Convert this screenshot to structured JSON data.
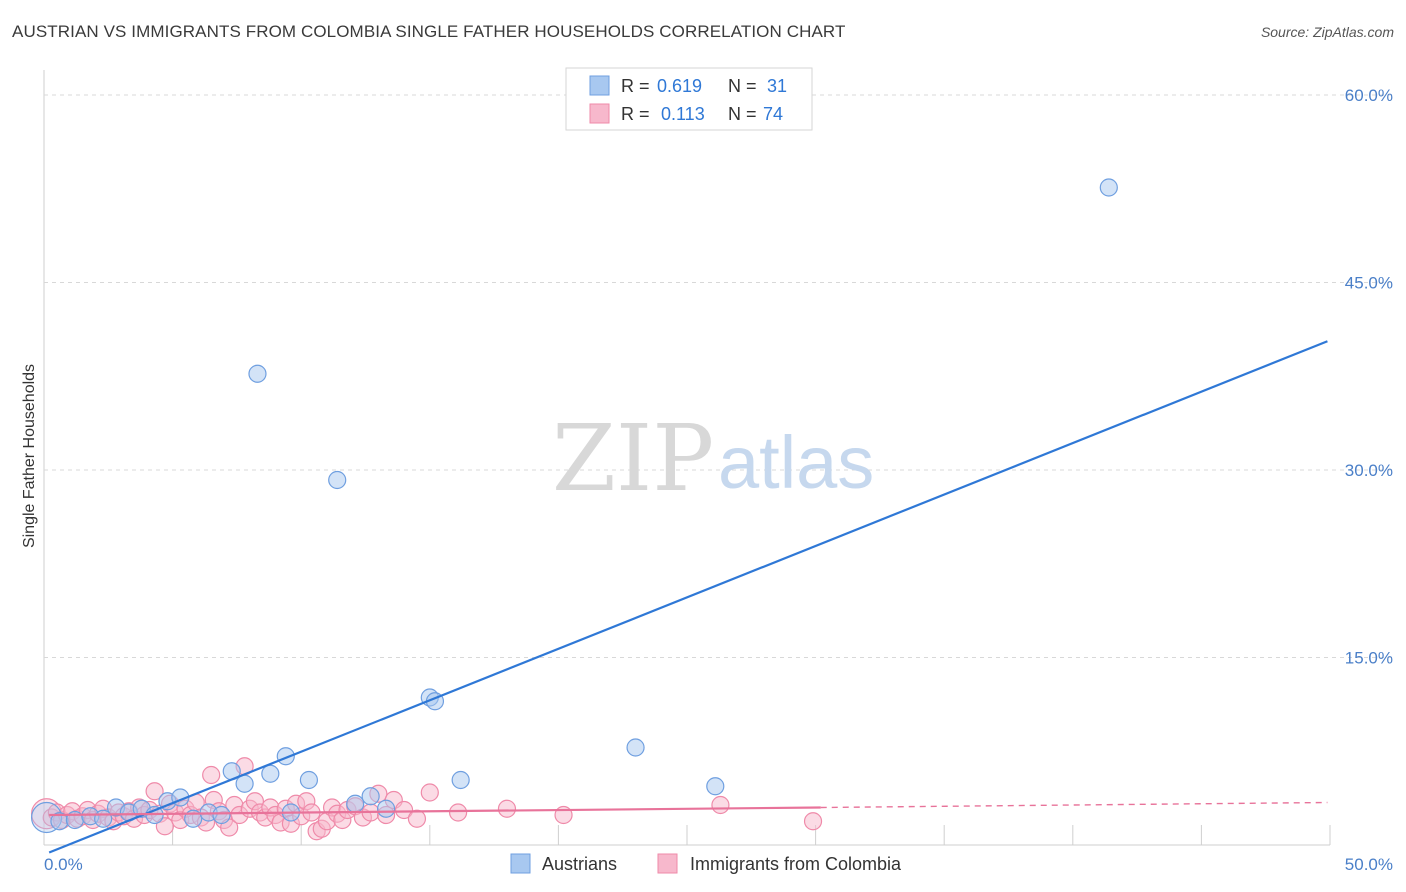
{
  "header": {
    "title": "AUSTRIAN VS IMMIGRANTS FROM COLOMBIA SINGLE FATHER HOUSEHOLDS CORRELATION CHART",
    "source": "Source: ZipAtlas.com"
  },
  "watermark": {
    "zip": "ZIP",
    "atlas": "atlas"
  },
  "colors": {
    "blue_fill": "#a8c8f0",
    "blue_stroke": "#6f9fe0",
    "blue_line": "#2f78d6",
    "pink_fill": "#f7b8cc",
    "pink_stroke": "#ef8aa9",
    "pink_line": "#e8739a",
    "tick_text": "#4a7fc8",
    "grid": "#d8d8d8"
  },
  "legend": {
    "rows": [
      {
        "r_label": "R =",
        "r_value": "0.619",
        "n_label": "N =",
        "n_value": "31"
      },
      {
        "r_label": "R =",
        "r_value": "0.113",
        "n_label": "N =",
        "n_value": "74"
      }
    ]
  },
  "bottom_legend": [
    "Austrians",
    "Immigrants from Colombia"
  ],
  "chart_data": {
    "type": "scatter",
    "title": "AUSTRIAN VS IMMIGRANTS FROM COLOMBIA SINGLE FATHER HOUSEHOLDS CORRELATION CHART",
    "xlabel": "",
    "ylabel": "Single Father Households",
    "xlim": [
      0,
      50
    ],
    "ylim": [
      0,
      62
    ],
    "x_tick_labels": [
      "0.0%",
      "50.0%"
    ],
    "y_ticks": [
      15,
      30,
      45,
      60
    ],
    "y_tick_labels": [
      "15.0%",
      "30.0%",
      "45.0%",
      "60.0%"
    ],
    "series": [
      {
        "name": "Austrians",
        "color": "#a8c8f0",
        "R": 0.619,
        "N": 31,
        "trend": {
          "x": [
            0.2,
            49.9
          ],
          "y": [
            -0.6,
            40.3
          ]
        },
        "points": [
          [
            0.1,
            2.2,
            "big"
          ],
          [
            0.6,
            1.9
          ],
          [
            1.2,
            2.0
          ],
          [
            1.8,
            2.3
          ],
          [
            2.3,
            2.1
          ],
          [
            2.8,
            3.0
          ],
          [
            3.3,
            2.6
          ],
          [
            3.8,
            2.9
          ],
          [
            4.3,
            2.4
          ],
          [
            4.8,
            3.5
          ],
          [
            5.3,
            3.8
          ],
          [
            5.8,
            2.1
          ],
          [
            6.4,
            2.6
          ],
          [
            6.9,
            2.4
          ],
          [
            7.3,
            5.9
          ],
          [
            7.8,
            4.9
          ],
          [
            8.3,
            37.7
          ],
          [
            8.8,
            5.7
          ],
          [
            9.4,
            7.1
          ],
          [
            9.6,
            2.6
          ],
          [
            10.3,
            5.2
          ],
          [
            11.4,
            29.2
          ],
          [
            12.1,
            3.3
          ],
          [
            12.7,
            3.9
          ],
          [
            13.3,
            2.9
          ],
          [
            15.0,
            11.8
          ],
          [
            15.2,
            11.5
          ],
          [
            16.2,
            5.2
          ],
          [
            23.0,
            7.8
          ],
          [
            26.1,
            4.7
          ],
          [
            41.4,
            52.6
          ]
        ]
      },
      {
        "name": "Immigrants from Colombia",
        "color": "#f7b8cc",
        "R": 0.113,
        "N": 74,
        "trend": {
          "x": [
            0.2,
            30.2
          ],
          "y": [
            2.4,
            3.0
          ]
        },
        "trend_dashed": {
          "x": [
            30.2,
            49.9
          ],
          "y": [
            3.0,
            3.4
          ]
        },
        "points": [
          [
            0.1,
            2.5,
            "big"
          ],
          [
            0.3,
            2.2
          ],
          [
            0.5,
            2.6
          ],
          [
            0.7,
            2.0
          ],
          [
            0.9,
            2.4
          ],
          [
            1.1,
            2.7
          ],
          [
            1.3,
            2.1
          ],
          [
            1.5,
            2.3
          ],
          [
            1.7,
            2.8
          ],
          [
            1.9,
            2.0
          ],
          [
            2.1,
            2.5
          ],
          [
            2.3,
            2.9
          ],
          [
            2.5,
            2.2
          ],
          [
            2.7,
            1.9
          ],
          [
            2.9,
            2.6
          ],
          [
            3.1,
            2.3
          ],
          [
            3.3,
            2.7
          ],
          [
            3.5,
            2.1
          ],
          [
            3.7,
            3.0
          ],
          [
            3.9,
            2.4
          ],
          [
            4.1,
            2.8
          ],
          [
            4.3,
            4.3
          ],
          [
            4.5,
            2.5
          ],
          [
            4.7,
            1.5
          ],
          [
            4.9,
            3.3
          ],
          [
            5.1,
            2.6
          ],
          [
            5.3,
            2.0
          ],
          [
            5.5,
            2.9
          ],
          [
            5.7,
            2.4
          ],
          [
            5.9,
            3.4
          ],
          [
            6.1,
            2.2
          ],
          [
            6.3,
            1.8
          ],
          [
            6.5,
            5.6
          ],
          [
            6.6,
            3.6
          ],
          [
            6.8,
            2.7
          ],
          [
            7.0,
            2.0
          ],
          [
            7.2,
            1.4
          ],
          [
            7.4,
            3.2
          ],
          [
            7.6,
            2.4
          ],
          [
            7.8,
            6.3
          ],
          [
            8.0,
            2.9
          ],
          [
            8.2,
            3.5
          ],
          [
            8.4,
            2.6
          ],
          [
            8.6,
            2.2
          ],
          [
            8.8,
            3.0
          ],
          [
            9.0,
            2.4
          ],
          [
            9.2,
            1.8
          ],
          [
            9.4,
            2.9
          ],
          [
            9.6,
            1.7
          ],
          [
            9.8,
            3.3
          ],
          [
            10.0,
            2.3
          ],
          [
            10.2,
            3.5
          ],
          [
            10.4,
            2.6
          ],
          [
            10.6,
            1.1
          ],
          [
            10.8,
            1.3
          ],
          [
            11.0,
            1.9
          ],
          [
            11.2,
            3.0
          ],
          [
            11.4,
            2.5
          ],
          [
            11.6,
            2.0
          ],
          [
            11.8,
            2.8
          ],
          [
            12.1,
            3.1
          ],
          [
            12.4,
            2.2
          ],
          [
            12.7,
            2.6
          ],
          [
            13.0,
            4.1
          ],
          [
            13.3,
            2.4
          ],
          [
            13.6,
            3.6
          ],
          [
            14.0,
            2.8
          ],
          [
            14.5,
            2.1
          ],
          [
            15.0,
            4.2
          ],
          [
            16.1,
            2.6
          ],
          [
            18.0,
            2.9
          ],
          [
            20.2,
            2.4
          ],
          [
            26.3,
            3.2
          ],
          [
            29.9,
            1.9
          ]
        ]
      }
    ]
  }
}
